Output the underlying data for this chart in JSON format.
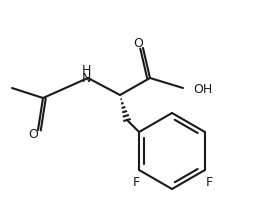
{
  "background": "#ffffff",
  "line_color": "#1a1a1a",
  "line_width": 1.5,
  "font_size": 9,
  "figsize": [
    2.54,
    1.98
  ],
  "dpi": 100,
  "xlim": [
    0,
    254
  ],
  "ylim": [
    0,
    198
  ]
}
